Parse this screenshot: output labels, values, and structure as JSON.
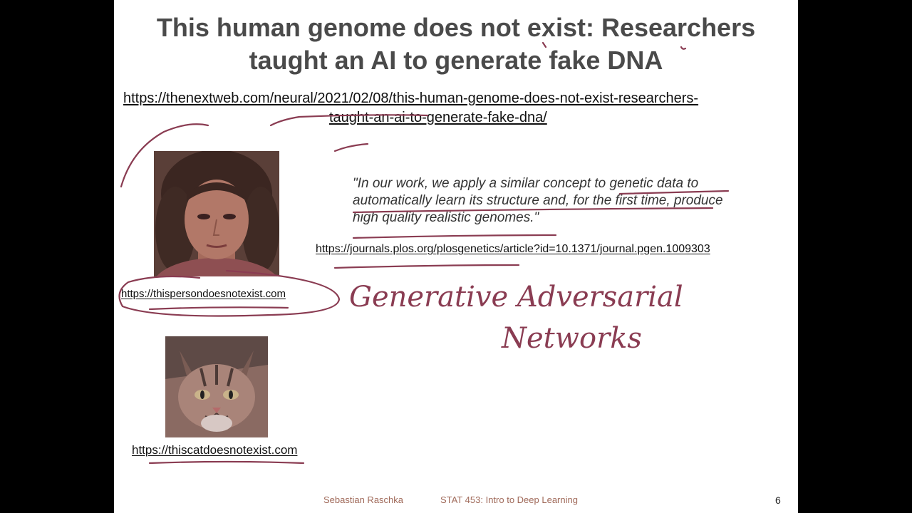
{
  "slide": {
    "title_line1": "This human genome does not exist: Researchers",
    "title_line2": "taught an AI to generate fake DNA",
    "article_url_line1": "https://thenextweb.com/neural/2021/02/08/this-human-genome-does-not-exist-researchers-",
    "article_url_line2": "taught-an-ai-to-generate-fake-dna/",
    "quote_line1": "\"In our work, we apply a similar concept to genetic data to",
    "quote_line2": "automatically learn its structure and, for the first time, produce",
    "quote_line3": "high quality realistic genomes.\"",
    "plos_url": "https://journals.plos.org/plosgenetics/article?id=10.1371/journal.pgen.1009303",
    "person_url": "https://thispersondoesnotexist.com",
    "cat_url": "https://thiscatdoesnotexist.com"
  },
  "annotations": {
    "handwriting_line1": "Generative Adversarial",
    "handwriting_line2": "Networks"
  },
  "footer": {
    "author": "Sebastian Raschka",
    "course": "STAT 453: Intro to Deep Learning",
    "page_number": "6"
  },
  "colors": {
    "ink": "#8a3c52",
    "title": "#4a4a4a",
    "footer": "#a06a5a"
  }
}
